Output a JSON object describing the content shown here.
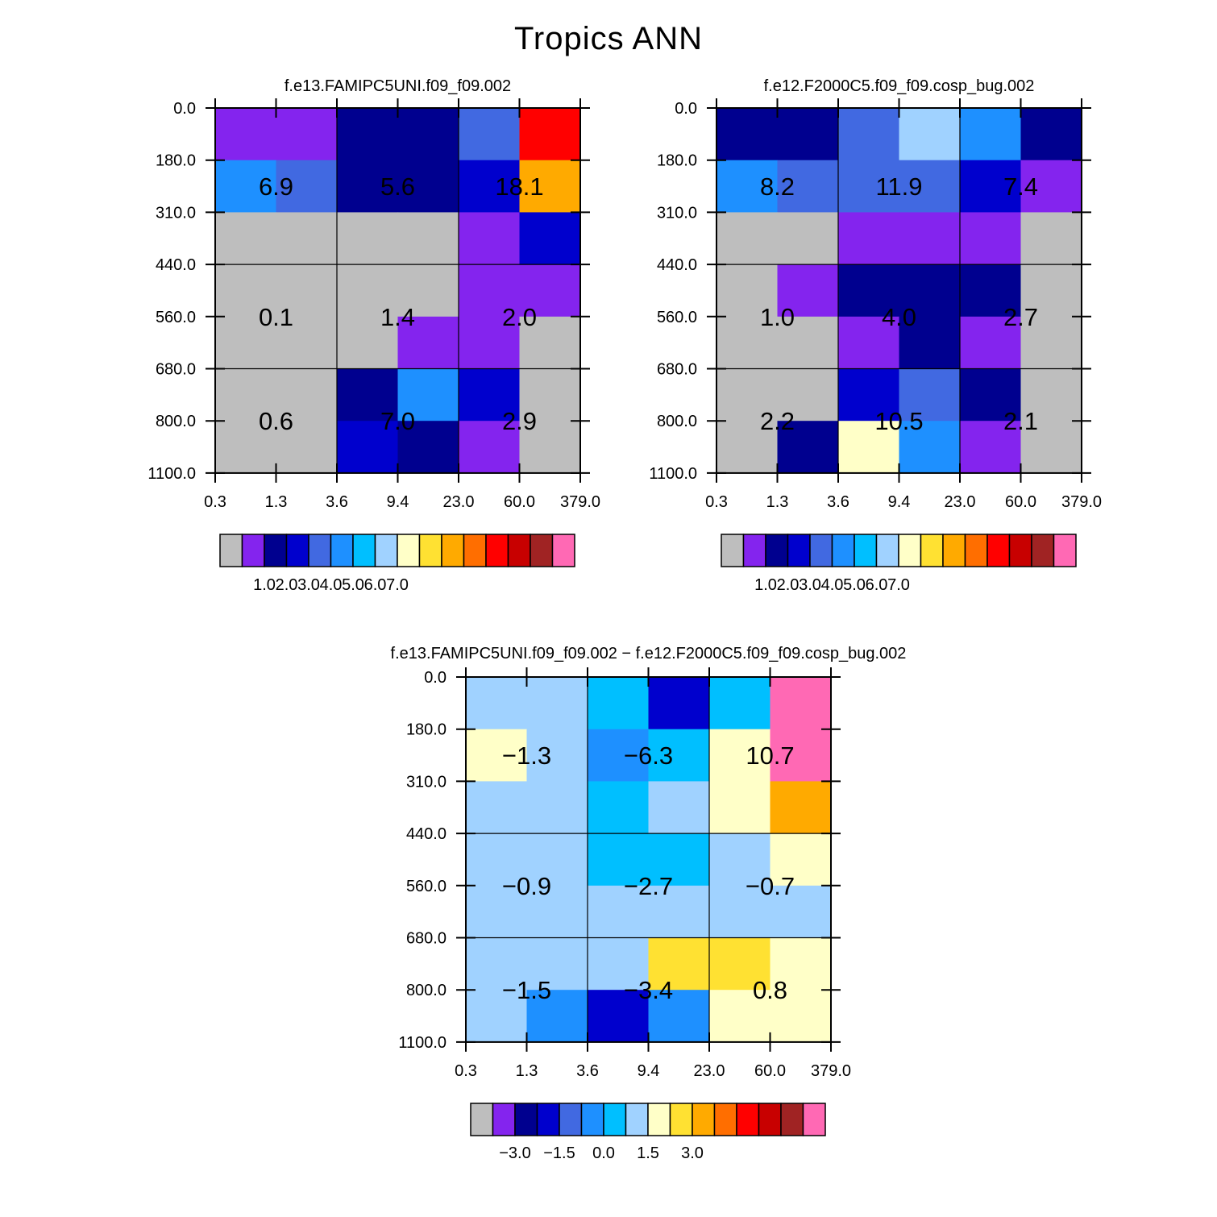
{
  "title": "Tropics ANN",
  "y_tick_labels": [
    "0.0",
    "180.0",
    "310.0",
    "440.0",
    "560.0",
    "680.0",
    "800.0",
    "1100.0"
  ],
  "x_tick_labels": [
    "0.3",
    "1.3",
    "3.6",
    "9.4",
    "23.0",
    "60.0",
    "379.0"
  ],
  "colors": {
    "scale": [
      "#bebebe",
      "#8424ee",
      "#00008f",
      "#0000cd",
      "#4169e1",
      "#1e90ff",
      "#00bfff",
      "#a0d2ff",
      "#ffffc8",
      "#ffe132",
      "#ffaa00",
      "#ff6e00",
      "#ff0000",
      "#c80000",
      "#a02323",
      "#ff69b4"
    ]
  },
  "chart_data": [
    {
      "type": "heatmap",
      "title": "f.e13.FAMIPC5UNI.f09_f09.002",
      "x": [
        "0.3",
        "1.3",
        "3.6",
        "9.4",
        "23.0",
        "60.0",
        "379.0"
      ],
      "y": [
        "0.0",
        "180.0",
        "310.0",
        "440.0",
        "560.0",
        "680.0",
        "800.0",
        "1100.0"
      ],
      "cell_color_index": [
        [
          1,
          1,
          2,
          2,
          4,
          12
        ],
        [
          5,
          4,
          2,
          2,
          3,
          10
        ],
        [
          0,
          0,
          0,
          0,
          1,
          3
        ],
        [
          0,
          0,
          0,
          0,
          1,
          1
        ],
        [
          0,
          0,
          0,
          1,
          1,
          0
        ],
        [
          0,
          0,
          2,
          5,
          3,
          0
        ],
        [
          0,
          0,
          3,
          2,
          1,
          0
        ]
      ],
      "group_labels": [
        [
          "6.9",
          "5.6",
          "18.1"
        ],
        [
          "0.1",
          "1.4",
          "2.0"
        ],
        [
          "0.6",
          "7.0",
          "2.9"
        ]
      ],
      "colorbar_labels": [
        "1.0",
        "2.0",
        "3.0",
        "4.0",
        "5.0",
        "6.0",
        "7.0"
      ]
    },
    {
      "type": "heatmap",
      "title": "f.e12.F2000C5.f09_f09.cosp_bug.002",
      "x": [
        "0.3",
        "1.3",
        "3.6",
        "9.4",
        "23.0",
        "60.0",
        "379.0"
      ],
      "y": [
        "0.0",
        "180.0",
        "310.0",
        "440.0",
        "560.0",
        "680.0",
        "800.0",
        "1100.0"
      ],
      "cell_color_index": [
        [
          2,
          2,
          4,
          7,
          5,
          2
        ],
        [
          5,
          4,
          4,
          4,
          3,
          1
        ],
        [
          0,
          0,
          1,
          1,
          1,
          0
        ],
        [
          0,
          1,
          2,
          2,
          2,
          0
        ],
        [
          0,
          0,
          1,
          2,
          1,
          0
        ],
        [
          0,
          0,
          3,
          4,
          2,
          0
        ],
        [
          0,
          2,
          8,
          5,
          1,
          0
        ]
      ],
      "group_labels": [
        [
          "8.2",
          "11.9",
          "7.4"
        ],
        [
          "1.0",
          "4.0",
          "2.7"
        ],
        [
          "2.2",
          "10.5",
          "2.1"
        ]
      ],
      "colorbar_labels": [
        "1.0",
        "2.0",
        "3.0",
        "4.0",
        "5.0",
        "6.0",
        "7.0"
      ]
    },
    {
      "type": "heatmap",
      "title": "f.e13.FAMIPC5UNI.f09_f09.002 − f.e12.F2000C5.f09_f09.cosp_bug.002",
      "x": [
        "0.3",
        "1.3",
        "3.6",
        "9.4",
        "23.0",
        "60.0",
        "379.0"
      ],
      "y": [
        "0.0",
        "180.0",
        "310.0",
        "440.0",
        "560.0",
        "680.0",
        "800.0",
        "1100.0"
      ],
      "cell_color_index": [
        [
          7,
          7,
          6,
          3,
          6,
          15
        ],
        [
          8,
          7,
          5,
          6,
          8,
          15
        ],
        [
          7,
          7,
          6,
          7,
          8,
          10
        ],
        [
          7,
          7,
          6,
          6,
          7,
          8
        ],
        [
          7,
          7,
          7,
          7,
          7,
          7
        ],
        [
          7,
          7,
          7,
          9,
          9,
          8
        ],
        [
          7,
          5,
          3,
          5,
          8,
          8
        ]
      ],
      "group_labels": [
        [
          "−1.3",
          "−6.3",
          "10.7"
        ],
        [
          "−0.9",
          "−2.7",
          "−0.7"
        ],
        [
          "−1.5",
          "−3.4",
          "0.8"
        ]
      ],
      "colorbar_labels": [
        "−3.0",
        "−1.5",
        "0.0",
        "1.5",
        "3.0"
      ]
    }
  ]
}
